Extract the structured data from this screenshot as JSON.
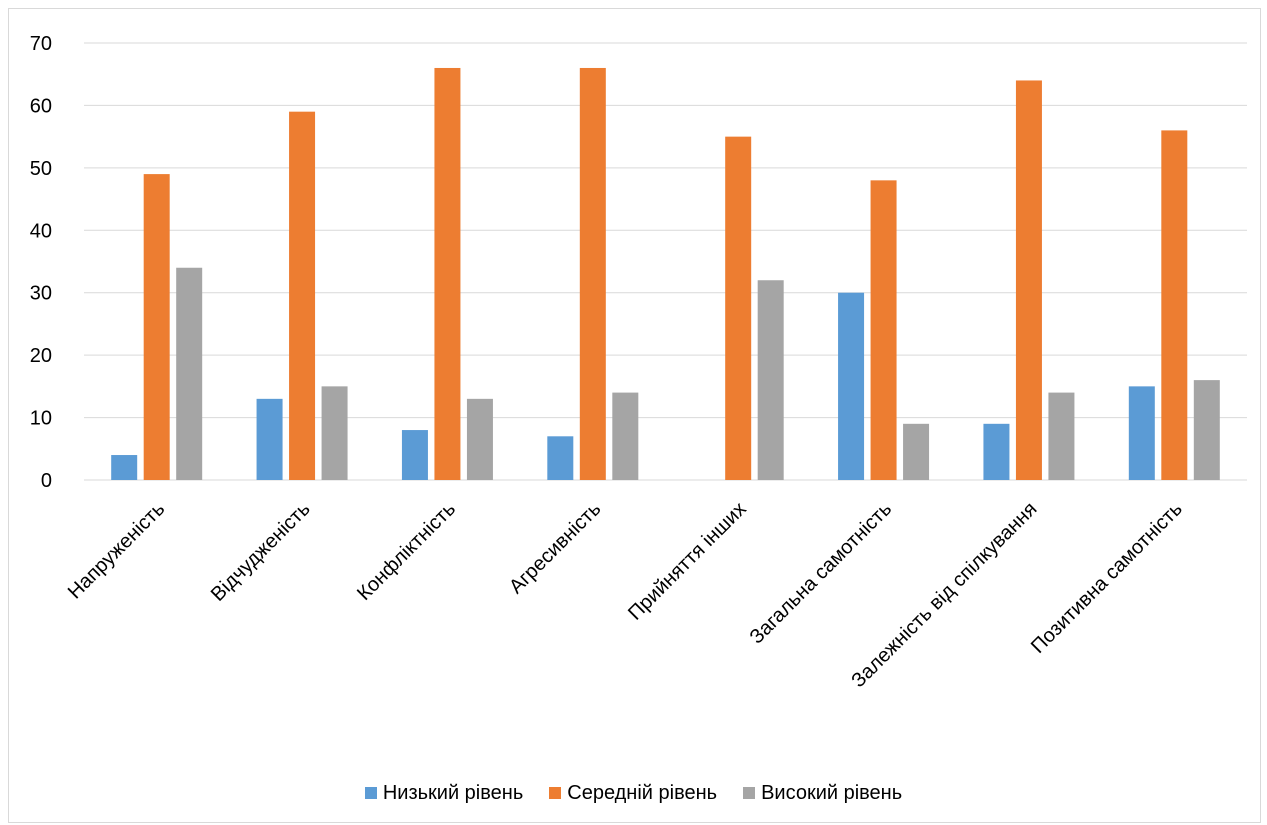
{
  "chart_data": {
    "type": "bar",
    "categories": [
      "Напруженість",
      "Відчудженість",
      "Конфліктність",
      "Агресивність",
      "Прийняття інших",
      "Загальна самотність",
      "Залежність від спілкування",
      "Позитивна самотність"
    ],
    "series": [
      {
        "name": "Низький рівень",
        "color": "#5b9bd5",
        "values": [
          4,
          13,
          8,
          7,
          0,
          30,
          9,
          15
        ]
      },
      {
        "name": "Середній рівень",
        "color": "#ed7d31",
        "values": [
          49,
          59,
          66,
          66,
          55,
          48,
          64,
          56
        ]
      },
      {
        "name": "Високий рівень",
        "color": "#a5a5a5",
        "values": [
          34,
          15,
          13,
          14,
          32,
          9,
          14,
          16
        ]
      }
    ],
    "ylim": [
      0,
      70
    ],
    "yticks": [
      "0",
      "10",
      "20",
      "30",
      "40",
      "50",
      "60",
      "70"
    ],
    "grid": true,
    "legend_position": "bottom",
    "title": "",
    "xlabel": "",
    "ylabel": ""
  }
}
